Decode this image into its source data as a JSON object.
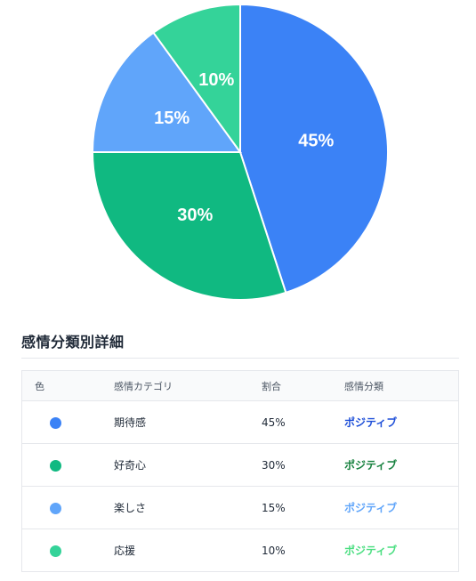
{
  "chart_data": {
    "type": "pie",
    "categories": [
      "期待感",
      "好奇心",
      "楽しさ",
      "応援"
    ],
    "values": [
      45,
      30,
      15,
      10
    ],
    "labels": [
      "45%",
      "30%",
      "15%",
      "10%"
    ],
    "colors": [
      "#3b82f6",
      "#10b981",
      "#60a5fa",
      "#34d399"
    ],
    "start": "top, clockwise"
  },
  "section": {
    "title": "感情分類別詳細"
  },
  "table": {
    "headers": {
      "color": "色",
      "category": "感情カテゴリ",
      "ratio": "割合",
      "classification": "感情分類"
    },
    "rows": [
      {
        "color": "#3b82f6",
        "category": "期待感",
        "ratio": "45%",
        "classification": "ポジティブ",
        "classification_color": "#1d4ed8"
      },
      {
        "color": "#10b981",
        "category": "好奇心",
        "ratio": "30%",
        "classification": "ポジティブ",
        "classification_color": "#15803d"
      },
      {
        "color": "#60a5fa",
        "category": "楽しさ",
        "ratio": "15%",
        "classification": "ポジティブ",
        "classification_color": "#60a5fa"
      },
      {
        "color": "#34d399",
        "category": "応援",
        "ratio": "10%",
        "classification": "ポジティブ",
        "classification_color": "#4ade80"
      }
    ]
  }
}
